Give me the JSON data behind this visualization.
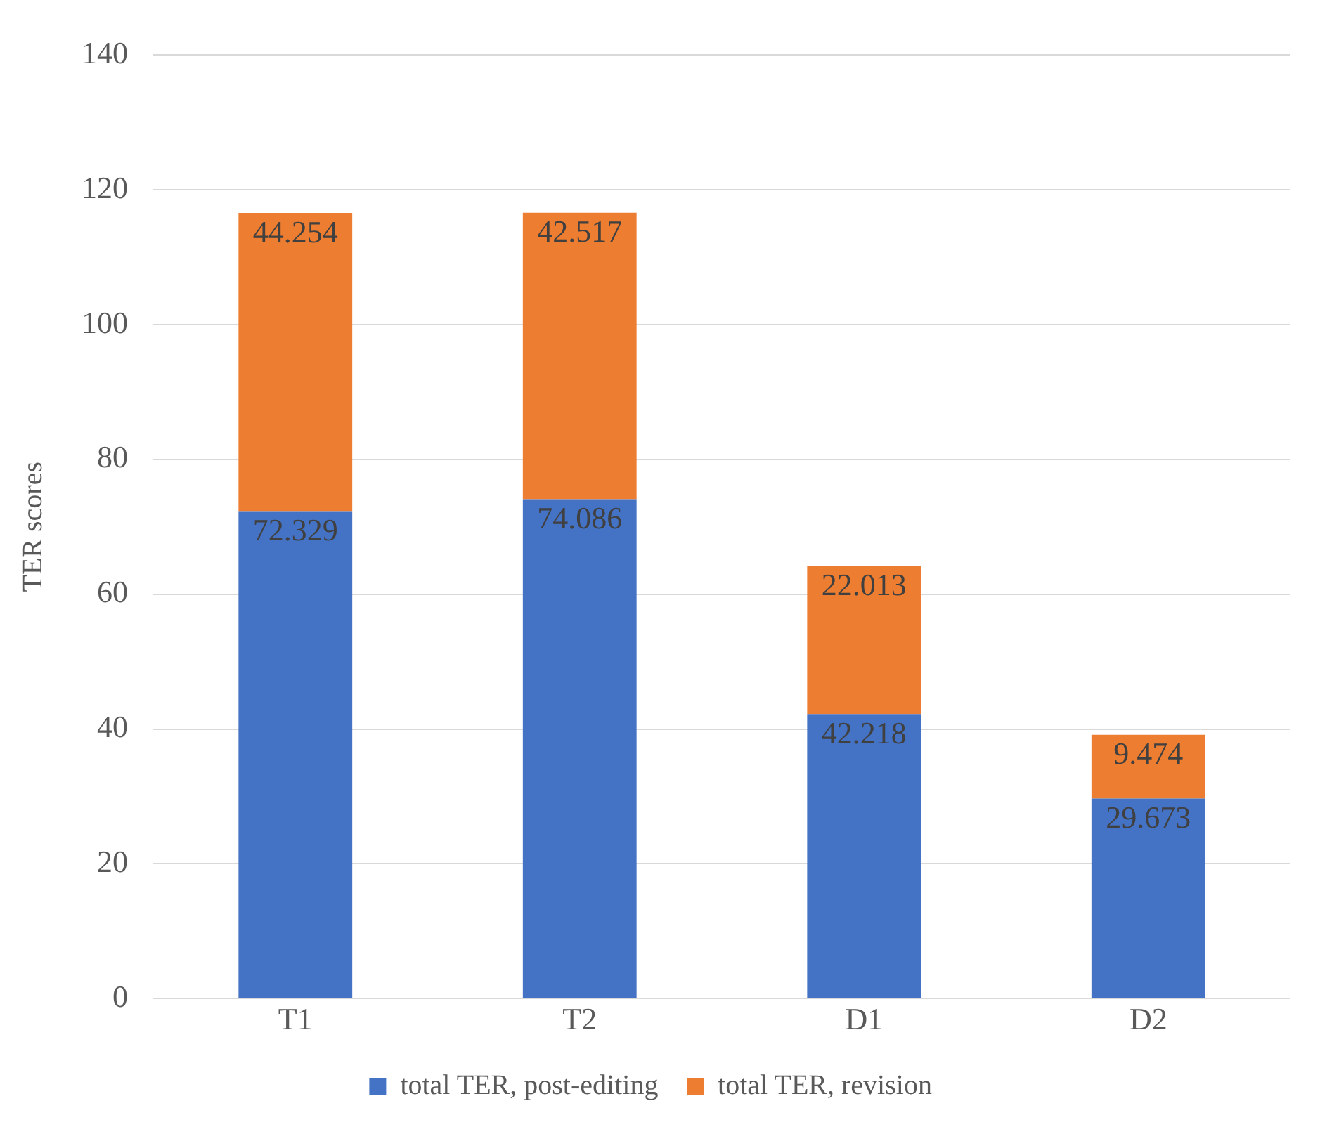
{
  "chart_data": {
    "type": "bar",
    "ylabel": "TER scores",
    "categories": [
      "T1",
      "T2",
      "D1",
      "D2"
    ],
    "series": [
      {
        "name": "total TER, post-editing",
        "color": "#4472c4",
        "values": [
          72.329,
          74.086,
          42.218,
          29.673
        ]
      },
      {
        "name": "total TER, revision",
        "color": "#ed7d31",
        "values": [
          44.254,
          42.517,
          22.013,
          9.474
        ]
      }
    ],
    "stacked": true,
    "ylim": [
      0,
      140
    ],
    "yticks": [
      0,
      20,
      40,
      60,
      80,
      100,
      120,
      140
    ],
    "grid": "y",
    "legend": "bottom",
    "data_labels": true
  }
}
